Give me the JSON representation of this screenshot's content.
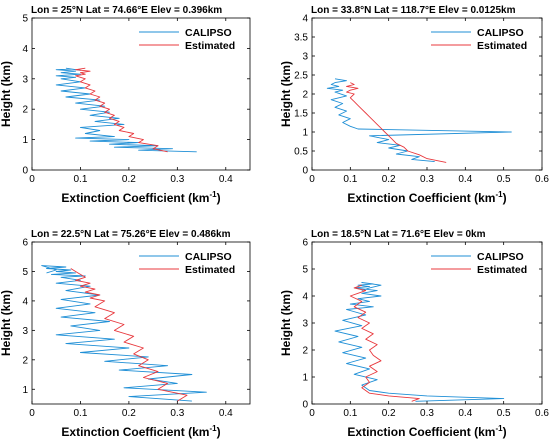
{
  "figure": {
    "background": "#ffffff"
  },
  "chart_data": [
    {
      "type": "line",
      "title": "Lon = 25°N Lat = 74.66°E Elev = 0.396km",
      "xlabel": "Extinction Coefficient (km",
      "xlabel_sup": "-1",
      "xlabel_tail": ")",
      "ylabel": "Height (km)",
      "xlim": [
        0,
        0.45
      ],
      "ylim": [
        0,
        5
      ],
      "xticks": [
        "0",
        "0.1",
        "0.2",
        "0.3",
        "0.4"
      ],
      "xtick_values": [
        0,
        0.1,
        0.2,
        0.3,
        0.4
      ],
      "yticks": [
        "0",
        "1",
        "2",
        "3",
        "4",
        "5"
      ],
      "ytick_values": [
        0,
        1,
        2,
        3,
        4,
        5
      ],
      "legend_position": "top-right",
      "series": [
        {
          "name": "CALIPSO",
          "color": "#1f8fd6",
          "x": [
            0.34,
            0.22,
            0.29,
            0.17,
            0.26,
            0.16,
            0.22,
            0.12,
            0.2,
            0.09,
            0.17,
            0.11,
            0.14,
            0.1,
            0.19,
            0.13,
            0.18,
            0.12,
            0.16,
            0.1,
            0.15,
            0.09,
            0.14,
            0.07,
            0.12,
            0.06,
            0.11,
            0.05,
            0.1,
            0.06,
            0.09,
            0.05,
            0.1,
            0.06,
            0.09,
            0.05,
            0.08,
            0.1,
            0.07
          ],
          "y": [
            0.6,
            0.65,
            0.7,
            0.75,
            0.8,
            0.85,
            0.9,
            0.95,
            1.0,
            1.05,
            1.1,
            1.2,
            1.3,
            1.4,
            1.5,
            1.6,
            1.7,
            1.8,
            1.9,
            2.0,
            2.1,
            2.2,
            2.3,
            2.4,
            2.5,
            2.6,
            2.7,
            2.8,
            2.9,
            3.0,
            3.05,
            3.1,
            3.15,
            3.2,
            3.25,
            3.3,
            3.32,
            3.28,
            3.35
          ]
        },
        {
          "name": "Estimated",
          "color": "#e8383d",
          "x": [
            0.28,
            0.25,
            0.26,
            0.22,
            0.23,
            0.2,
            0.21,
            0.18,
            0.19,
            0.17,
            0.18,
            0.16,
            0.17,
            0.15,
            0.16,
            0.14,
            0.15,
            0.13,
            0.14,
            0.12,
            0.13,
            0.11,
            0.12,
            0.1,
            0.11,
            0.1,
            0.09,
            0.11,
            0.1,
            0.12,
            0.09,
            0.11
          ],
          "y": [
            0.6,
            0.7,
            0.8,
            0.9,
            1.0,
            1.1,
            1.2,
            1.3,
            1.4,
            1.5,
            1.6,
            1.7,
            1.8,
            1.9,
            2.0,
            2.1,
            2.2,
            2.3,
            2.4,
            2.5,
            2.6,
            2.7,
            2.8,
            2.9,
            3.0,
            3.05,
            3.1,
            3.15,
            3.2,
            3.25,
            3.3,
            3.35
          ]
        }
      ]
    },
    {
      "type": "line",
      "title": "Lon = 33.8°N Lat = 118.7°E Elev = 0.0125km",
      "xlabel": "Extinction Coefficient (km",
      "xlabel_sup": "-1",
      "xlabel_tail": ")",
      "ylabel": "Height (km)",
      "xlim": [
        0,
        0.6
      ],
      "ylim": [
        0,
        4
      ],
      "xticks": [
        "0",
        "0.1",
        "0.2",
        "0.3",
        "0.4",
        "0.5",
        "0.6"
      ],
      "xtick_values": [
        0,
        0.1,
        0.2,
        0.3,
        0.4,
        0.5,
        0.6
      ],
      "yticks": [
        "0",
        "0.5",
        "1",
        "1.5",
        "2",
        "2.5",
        "3",
        "3.5",
        "4"
      ],
      "ytick_values": [
        0,
        0.5,
        1,
        1.5,
        2,
        2.5,
        3,
        3.5,
        4
      ],
      "legend_position": "top-right",
      "series": [
        {
          "name": "CALIPSO",
          "color": "#1f8fd6",
          "x": [
            0.32,
            0.26,
            0.28,
            0.22,
            0.25,
            0.2,
            0.23,
            0.17,
            0.2,
            0.15,
            0.52,
            0.12,
            0.1,
            0.08,
            0.1,
            0.07,
            0.09,
            0.06,
            0.08,
            0.05,
            0.09,
            0.06,
            0.08,
            0.04,
            0.07,
            0.05,
            0.06,
            0.09,
            0.06
          ],
          "y": [
            0.22,
            0.28,
            0.35,
            0.42,
            0.5,
            0.58,
            0.65,
            0.72,
            0.8,
            0.9,
            1.0,
            1.08,
            1.15,
            1.25,
            1.35,
            1.45,
            1.55,
            1.65,
            1.75,
            1.85,
            1.95,
            2.05,
            2.1,
            2.15,
            2.2,
            2.25,
            2.3,
            2.35,
            2.4
          ]
        },
        {
          "name": "Estimated",
          "color": "#e8383d",
          "x": [
            0.35,
            0.3,
            0.28,
            0.25,
            0.24,
            0.22,
            0.21,
            0.2,
            0.19,
            0.18,
            0.17,
            0.16,
            0.15,
            0.14,
            0.13,
            0.12,
            0.11,
            0.1,
            0.11,
            0.09,
            0.1,
            0.12,
            0.09,
            0.11,
            0.1
          ],
          "y": [
            0.2,
            0.3,
            0.4,
            0.5,
            0.6,
            0.7,
            0.8,
            0.9,
            1.0,
            1.1,
            1.2,
            1.3,
            1.4,
            1.5,
            1.6,
            1.7,
            1.8,
            1.9,
            2.0,
            2.05,
            2.1,
            2.15,
            2.2,
            2.25,
            2.3
          ]
        }
      ]
    },
    {
      "type": "line",
      "title": "Lon = 22.5°N Lat = 75.26°E Elev = 0.486km",
      "xlabel": "Extinction Coefficient (km",
      "xlabel_sup": "-1",
      "xlabel_tail": ")",
      "ylabel": "Height (km)",
      "xlim": [
        0,
        0.45
      ],
      "ylim": [
        0.5,
        6
      ],
      "xticks": [
        "0",
        "0.1",
        "0.2",
        "0.3",
        "0.4"
      ],
      "xtick_values": [
        0,
        0.1,
        0.2,
        0.3,
        0.4
      ],
      "yticks": [
        "1",
        "2",
        "3",
        "4",
        "5",
        "6"
      ],
      "ytick_values": [
        1,
        2,
        3,
        4,
        5,
        6
      ],
      "legend_position": "top-right",
      "series": [
        {
          "name": "CALIPSO",
          "color": "#1f8fd6",
          "x": [
            0.33,
            0.2,
            0.36,
            0.19,
            0.3,
            0.24,
            0.33,
            0.18,
            0.28,
            0.15,
            0.24,
            0.1,
            0.2,
            0.07,
            0.17,
            0.05,
            0.14,
            0.08,
            0.16,
            0.06,
            0.13,
            0.05,
            0.12,
            0.06,
            0.14,
            0.07,
            0.12,
            0.05,
            0.1,
            0.06,
            0.11,
            0.04,
            0.09,
            0.05,
            0.08,
            0.03,
            0.07,
            0.02,
            0.05,
            0.03
          ],
          "y": [
            0.6,
            0.75,
            0.9,
            1.05,
            1.2,
            1.35,
            1.5,
            1.65,
            1.8,
            1.95,
            2.1,
            2.25,
            2.4,
            2.55,
            2.7,
            2.85,
            3.0,
            3.15,
            3.3,
            3.45,
            3.6,
            3.75,
            3.9,
            4.05,
            4.2,
            4.35,
            4.5,
            4.6,
            4.7,
            4.8,
            4.85,
            4.9,
            4.95,
            5.0,
            5.05,
            5.1,
            5.15,
            5.2,
            5.05,
            4.95
          ]
        },
        {
          "name": "Estimated",
          "color": "#e8383d",
          "x": [
            0.3,
            0.32,
            0.26,
            0.28,
            0.23,
            0.26,
            0.22,
            0.24,
            0.21,
            0.23,
            0.19,
            0.21,
            0.17,
            0.19,
            0.15,
            0.17,
            0.13,
            0.15,
            0.12,
            0.14,
            0.11,
            0.13,
            0.1,
            0.12,
            0.09,
            0.11,
            0.1,
            0.09,
            0.08
          ],
          "y": [
            0.6,
            0.8,
            1.0,
            1.2,
            1.4,
            1.6,
            1.8,
            2.0,
            2.2,
            2.4,
            2.6,
            2.8,
            3.0,
            3.2,
            3.4,
            3.6,
            3.8,
            4.0,
            4.1,
            4.2,
            4.3,
            4.4,
            4.5,
            4.6,
            4.7,
            4.8,
            4.9,
            5.0,
            5.1
          ]
        }
      ]
    },
    {
      "type": "line",
      "title": "Lon = 18.5°N Lat = 71.6°E Elev = 0km",
      "xlabel": "Extinction Coefficient (km",
      "xlabel_sup": "-1",
      "xlabel_tail": ")",
      "ylabel": "Height (km)",
      "xlim": [
        0,
        0.6
      ],
      "ylim": [
        0,
        6
      ],
      "xticks": [
        "0",
        "0.1",
        "0.2",
        "0.3",
        "0.4",
        "0.5",
        "0.6"
      ],
      "xtick_values": [
        0,
        0.1,
        0.2,
        0.3,
        0.4,
        0.5,
        0.6
      ],
      "yticks": [
        "0",
        "1",
        "2",
        "3",
        "4",
        "5",
        "6"
      ],
      "ytick_values": [
        0,
        1,
        2,
        3,
        4,
        5,
        6
      ],
      "legend_position": "top-right",
      "series": [
        {
          "name": "CALIPSO",
          "color": "#1f8fd6",
          "x": [
            0.27,
            0.5,
            0.3,
            0.2,
            0.15,
            0.13,
            0.17,
            0.11,
            0.15,
            0.09,
            0.14,
            0.08,
            0.13,
            0.07,
            0.12,
            0.06,
            0.13,
            0.08,
            0.14,
            0.09,
            0.16,
            0.1,
            0.15,
            0.12,
            0.18,
            0.13,
            0.17,
            0.11,
            0.15,
            0.12,
            0.16,
            0.13,
            0.18,
            0.15,
            0.13
          ],
          "y": [
            0.1,
            0.2,
            0.3,
            0.4,
            0.5,
            0.7,
            0.9,
            1.1,
            1.3,
            1.5,
            1.7,
            1.9,
            2.1,
            2.3,
            2.5,
            2.7,
            2.9,
            3.1,
            3.3,
            3.5,
            3.6,
            3.7,
            3.8,
            3.9,
            4.0,
            4.1,
            4.2,
            4.3,
            4.35,
            4.4,
            4.45,
            4.5,
            4.4,
            4.3,
            4.2
          ]
        },
        {
          "name": "Estimated",
          "color": "#e8383d",
          "x": [
            0.26,
            0.28,
            0.2,
            0.15,
            0.13,
            0.15,
            0.14,
            0.17,
            0.15,
            0.18,
            0.16,
            0.15,
            0.17,
            0.14,
            0.16,
            0.13,
            0.15,
            0.12,
            0.14,
            0.11,
            0.13,
            0.1,
            0.12,
            0.14,
            0.11,
            0.13
          ],
          "y": [
            0.1,
            0.2,
            0.3,
            0.4,
            0.6,
            0.8,
            1.0,
            1.2,
            1.4,
            1.6,
            1.8,
            2.0,
            2.2,
            2.4,
            2.6,
            2.8,
            3.0,
            3.2,
            3.4,
            3.6,
            3.8,
            4.0,
            4.1,
            4.2,
            4.3,
            4.4
          ]
        }
      ]
    }
  ]
}
